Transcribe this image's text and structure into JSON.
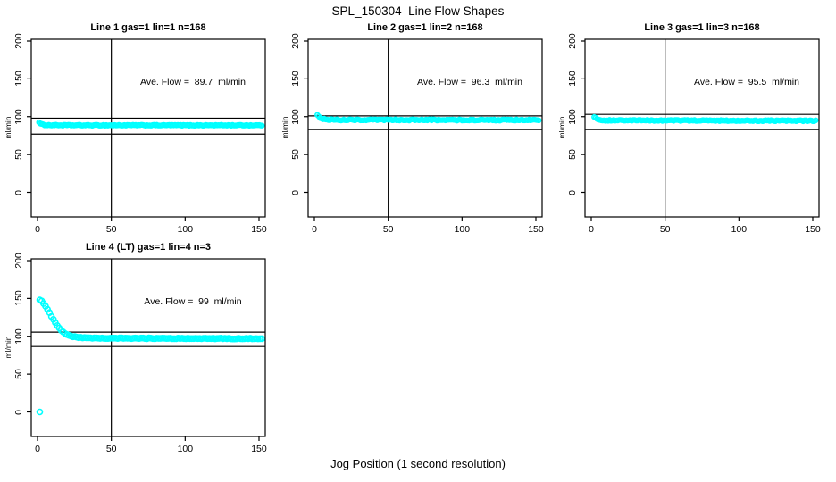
{
  "page": {
    "title": "SPL_150304  Line Flow Shapes",
    "xlabel": "Jog Position (1 second resolution)"
  },
  "colors": {
    "marker": "#00FFFF",
    "axis": "#000000",
    "background": "#FFFFFF"
  },
  "chart_data": [
    {
      "type": "scatter",
      "title": "Line 1 gas=1 lin=1 n=168",
      "annotation": "Ave. Flow =  89.7  ml/min",
      "ave_flow_ml_min": 89.7,
      "ylabel": "ml/min",
      "x_ticks": [
        0,
        50,
        100,
        150
      ],
      "y_ticks": [
        0,
        50,
        100,
        150,
        200
      ],
      "xlim": [
        -4,
        154
      ],
      "ylim": [
        -32,
        202
      ],
      "vline_x": 50,
      "hlines": [
        98,
        77
      ],
      "curve": [
        [
          1,
          93
        ],
        [
          2,
          90.5
        ],
        [
          4,
          89.3
        ],
        [
          8,
          88.9
        ],
        [
          20,
          88.7
        ],
        [
          152,
          88.7
        ]
      ],
      "x_end": 152,
      "n_points": 160,
      "noise": 0.6,
      "marker_r": 2.4,
      "outliers": []
    },
    {
      "type": "scatter",
      "title": "Line 2 gas=1 lin=2 n=168",
      "annotation": "Ave. Flow =  96.3  ml/min",
      "ave_flow_ml_min": 96.3,
      "ylabel": "ml/min",
      "x_ticks": [
        0,
        50,
        100,
        150
      ],
      "y_ticks": [
        0,
        50,
        100,
        150,
        200
      ],
      "xlim": [
        -4,
        154
      ],
      "ylim": [
        -32,
        202
      ],
      "vline_x": 50,
      "hlines": [
        101,
        83
      ],
      "curve": [
        [
          2,
          103
        ],
        [
          3,
          100
        ],
        [
          5,
          97.5
        ],
        [
          8,
          96.3
        ],
        [
          15,
          95.8
        ],
        [
          152,
          95.5
        ]
      ],
      "x_end": 152,
      "n_points": 160,
      "noise": 0.85,
      "marker_r": 2.4,
      "outliers": []
    },
    {
      "type": "scatter",
      "title": "Line 3 gas=1 lin=3 n=168",
      "annotation": "Ave. Flow =  95.5  ml/min",
      "ave_flow_ml_min": 95.5,
      "ylabel": "ml/min",
      "x_ticks": [
        0,
        50,
        100,
        150
      ],
      "y_ticks": [
        0,
        50,
        100,
        150,
        200
      ],
      "xlim": [
        -4,
        154
      ],
      "ylim": [
        -32,
        202
      ],
      "vline_x": 50,
      "hlines": [
        103,
        83
      ],
      "curve": [
        [
          2,
          100
        ],
        [
          3,
          98
        ],
        [
          5,
          96.2
        ],
        [
          8,
          95.2
        ],
        [
          152,
          94.6
        ]
      ],
      "x_end": 152,
      "n_points": 160,
      "noise": 0.7,
      "marker_r": 2.4,
      "outliers": []
    },
    {
      "type": "scatter",
      "title": "Line 4 (LT) gas=1 lin=4 n=3",
      "annotation": "Ave. Flow =  99  ml/min",
      "ave_flow_ml_min": 99,
      "ylabel": "ml/min",
      "x_ticks": [
        0,
        50,
        100,
        150
      ],
      "y_ticks": [
        0,
        50,
        100,
        150,
        200
      ],
      "xlim": [
        -4,
        154
      ],
      "ylim": [
        -32,
        202
      ],
      "vline_x": 50,
      "hlines": [
        105.5,
        86.5
      ],
      "curve": [
        [
          1.5,
          148
        ],
        [
          3,
          146
        ],
        [
          5,
          141
        ],
        [
          7,
          135
        ],
        [
          9,
          128
        ],
        [
          11,
          121
        ],
        [
          13,
          115
        ],
        [
          15,
          110
        ],
        [
          17,
          106
        ],
        [
          19,
          103
        ],
        [
          22,
          100.5
        ],
        [
          26,
          99
        ],
        [
          30,
          98
        ],
        [
          40,
          97.4
        ],
        [
          152,
          97
        ]
      ],
      "x_end": 152,
      "n_points": 115,
      "noise": 0.5,
      "marker_r": 3,
      "outliers": [
        [
          1.5,
          0
        ]
      ]
    }
  ]
}
